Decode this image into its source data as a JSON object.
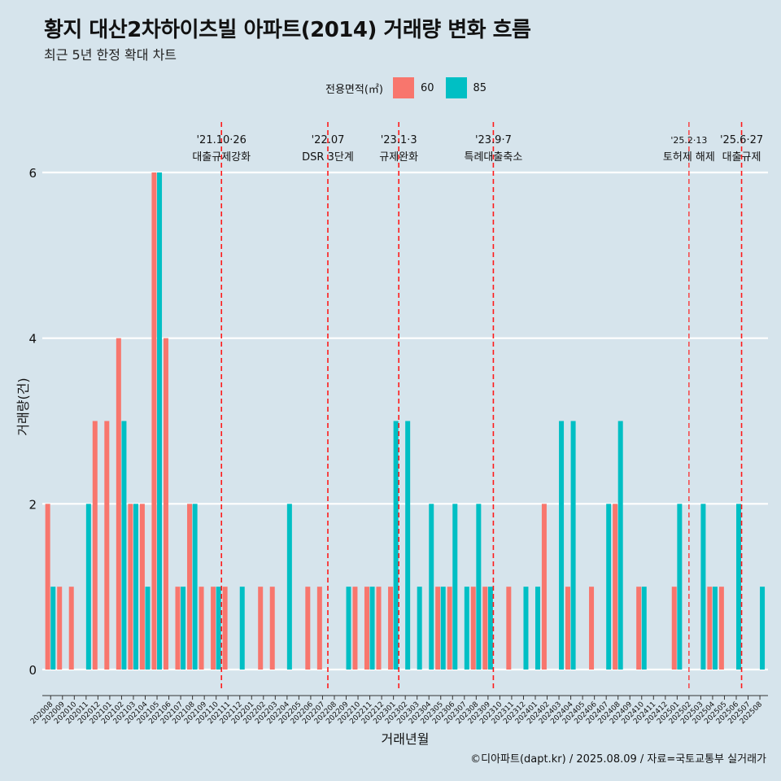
{
  "title": "황지 대산2차하이츠빌 아파트(2014) 거래량 변화 흐름",
  "subtitle": "최근 5년 한정 확대 차트",
  "caption": "©디아파트(dapt.kr) / 2025.08.09 / 자료=국토교통부 실거래가",
  "legend": {
    "title": "전용면적(㎡)",
    "items": [
      {
        "label": "60",
        "color": "#f8766d"
      },
      {
        "label": "85",
        "color": "#00bfc4"
      }
    ]
  },
  "chart_data": {
    "type": "bar",
    "xlabel": "거래년월",
    "ylabel": "거래량(건)",
    "ylim": [
      0,
      6
    ],
    "yticks": [
      0,
      2,
      4,
      6
    ],
    "grid": true,
    "legend_position": "top",
    "categories": [
      "202008",
      "202009",
      "202010",
      "202011",
      "202012",
      "202101",
      "202102",
      "202103",
      "202104",
      "202105",
      "202106",
      "202107",
      "202108",
      "202109",
      "202110",
      "202111",
      "202112",
      "202201",
      "202202",
      "202203",
      "202204",
      "202205",
      "202206",
      "202207",
      "202208",
      "202209",
      "202210",
      "202211",
      "202212",
      "202301",
      "202302",
      "202303",
      "202304",
      "202305",
      "202306",
      "202307",
      "202308",
      "202309",
      "202310",
      "202311",
      "202312",
      "202401",
      "202402",
      "202403",
      "202404",
      "202405",
      "202406",
      "202407",
      "202408",
      "202409",
      "202410",
      "202411",
      "202412",
      "202501",
      "202502",
      "202503",
      "202504",
      "202505",
      "202506",
      "202507",
      "202508"
    ],
    "series": [
      {
        "name": "60",
        "color": "#f8766d",
        "values": [
          2,
          1,
          1,
          0,
          3,
          3,
          4,
          2,
          2,
          6,
          4,
          1,
          2,
          1,
          1,
          1,
          0,
          0,
          1,
          1,
          0,
          0,
          1,
          1,
          0,
          0,
          1,
          1,
          1,
          1,
          0,
          0,
          0,
          1,
          1,
          0,
          1,
          1,
          0,
          1,
          0,
          0,
          2,
          0,
          1,
          0,
          1,
          0,
          2,
          0,
          1,
          0,
          0,
          1,
          0,
          0,
          1,
          1,
          0,
          0,
          0
        ]
      },
      {
        "name": "85",
        "color": "#00bfc4",
        "values": [
          1,
          0,
          0,
          2,
          0,
          0,
          3,
          2,
          1,
          6,
          0,
          1,
          2,
          0,
          1,
          0,
          1,
          0,
          0,
          0,
          2,
          0,
          0,
          0,
          0,
          1,
          0,
          1,
          0,
          3,
          3,
          1,
          2,
          1,
          2,
          1,
          2,
          1,
          0,
          0,
          1,
          1,
          0,
          3,
          3,
          0,
          0,
          2,
          3,
          0,
          1,
          0,
          0,
          2,
          0,
          2,
          1,
          0,
          2,
          0,
          1
        ]
      }
    ],
    "annotations": [
      {
        "x": "202110",
        "date": "'21.10·26",
        "label": "대출규제강화"
      },
      {
        "x": "202207",
        "date": "'22.07",
        "label": "DSR 3단계"
      },
      {
        "x": "202301",
        "date": "'23.1·3",
        "label": "규제완화"
      },
      {
        "x": "202309",
        "date": "'23.9·7",
        "label": "특례대출축소"
      },
      {
        "x": "202502",
        "date": "'25.2·13",
        "label": "토허제 해제"
      },
      {
        "x": "202506",
        "date": "'25.6·27",
        "label": "대출규제"
      }
    ]
  }
}
